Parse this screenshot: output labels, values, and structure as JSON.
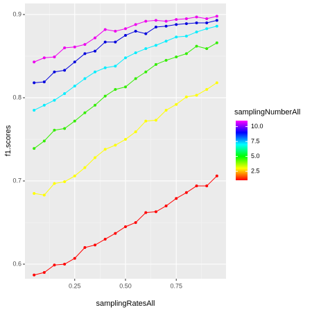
{
  "chart_data": {
    "type": "line",
    "x_label": "samplingRatesAll",
    "y_label": "f1.scores",
    "x": [
      0.05,
      0.1,
      0.15,
      0.2,
      0.25,
      0.3,
      0.35,
      0.4,
      0.45,
      0.5,
      0.55,
      0.6,
      0.65,
      0.7,
      0.75,
      0.8,
      0.85,
      0.9,
      0.95
    ],
    "series": [
      {
        "color": "#ff0000",
        "values": [
          0.587,
          0.59,
          0.599,
          0.6,
          0.607,
          0.62,
          0.623,
          0.63,
          0.637,
          0.645,
          0.65,
          0.662,
          0.663,
          0.67,
          0.679,
          0.686,
          0.694,
          0.694,
          0.706
        ]
      },
      {
        "color": "#ffff00",
        "values": [
          0.685,
          0.683,
          0.697,
          0.699,
          0.706,
          0.716,
          0.728,
          0.738,
          0.743,
          0.75,
          0.759,
          0.772,
          0.773,
          0.785,
          0.792,
          0.801,
          0.803,
          0.81,
          0.818
        ]
      },
      {
        "color": "#33ee00",
        "values": [
          0.739,
          0.748,
          0.761,
          0.763,
          0.772,
          0.782,
          0.791,
          0.802,
          0.81,
          0.813,
          0.823,
          0.831,
          0.84,
          0.845,
          0.849,
          0.853,
          0.862,
          0.859,
          0.866
        ]
      },
      {
        "color": "#00eeff",
        "values": [
          0.785,
          0.791,
          0.797,
          0.805,
          0.814,
          0.823,
          0.831,
          0.836,
          0.838,
          0.848,
          0.854,
          0.859,
          0.863,
          0.868,
          0.873,
          0.874,
          0.879,
          0.883,
          0.886
        ]
      },
      {
        "color": "#0000dd",
        "values": [
          0.818,
          0.819,
          0.831,
          0.833,
          0.843,
          0.853,
          0.856,
          0.867,
          0.867,
          0.875,
          0.88,
          0.877,
          0.885,
          0.886,
          0.888,
          0.889,
          0.89,
          0.89,
          0.893
        ]
      },
      {
        "color": "#ee00ee",
        "values": [
          0.843,
          0.848,
          0.849,
          0.86,
          0.861,
          0.864,
          0.872,
          0.882,
          0.88,
          0.883,
          0.888,
          0.892,
          0.893,
          0.892,
          0.894,
          0.895,
          0.897,
          0.895,
          0.898
        ]
      }
    ],
    "xlim": [
      0.005,
      0.995
    ],
    "xticks": [
      0.25,
      {
        "value": 0.5,
        "label": "0.50"
      },
      0.75
    ],
    "ylim": [
      0.5825,
      0.9133
    ],
    "yticks": [
      0.6,
      0.7,
      0.8,
      0.9
    ],
    "grid": true,
    "colorbar": {
      "title": "samplingNumberAll",
      "lim": [
        1,
        11
      ],
      "colors": [
        "#ff0000",
        "#ffff00",
        "#00ff00",
        "#00ffff",
        "#0000ff",
        "#ff00ff"
      ],
      "ticks": [
        2.5,
        {
          "value": 5,
          "label": "5.0"
        },
        7.5,
        {
          "value": 10,
          "label": "10.0"
        }
      ]
    }
  }
}
